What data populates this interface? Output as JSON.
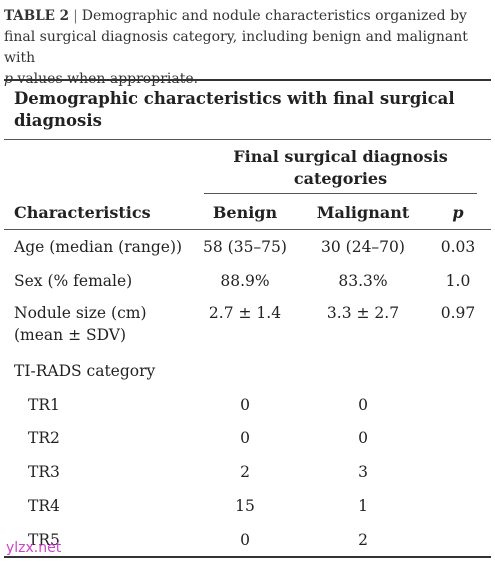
{
  "caption": {
    "label": "TABLE 2",
    "separator": "|",
    "text_before_p": "Demographic and nodule characteristics organized by final surgical diagnosis category, including benign and malignant with",
    "p_symbol": "p",
    "text_after_p": " values when appropriate."
  },
  "table": {
    "section_title": "Demographic characteristics with final surgical diagnosis",
    "group_header": "Final surgical diagnosis categories",
    "columns": {
      "characteristics": "Characteristics",
      "benign": "Benign",
      "malignant": "Malignant",
      "p": "p"
    },
    "rows": [
      {
        "label": "Age (median (range))",
        "benign": "58 (35–75)",
        "malignant": "30 (24–70)",
        "p": "0.03"
      },
      {
        "label": "Sex (% female)",
        "benign": "88.9%",
        "malignant": "83.3%",
        "p": "1.0"
      },
      {
        "label": "Nodule size (cm)",
        "label2": "(mean ± SDV)",
        "benign": "2.7 ± 1.4",
        "malignant": "3.3 ± 2.7",
        "p": "0.97"
      },
      {
        "label": "TI-RADS category"
      },
      {
        "label": "TR1",
        "benign": "0",
        "malignant": "0"
      },
      {
        "label": "TR2",
        "benign": "0",
        "malignant": "0"
      },
      {
        "label": "TR3",
        "benign": "2",
        "malignant": "3"
      },
      {
        "label": "TR4",
        "benign": "15",
        "malignant": "1"
      },
      {
        "label": "TR5",
        "benign": "0",
        "malignant": "2"
      }
    ]
  },
  "watermark": "ylzx.net"
}
